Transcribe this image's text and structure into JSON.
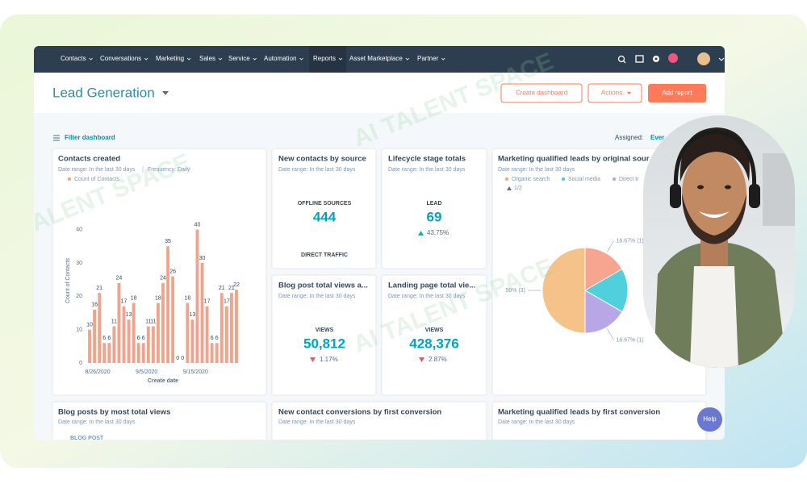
{
  "watermark": "AI TALENT SPACE",
  "nav": {
    "items": [
      "Contacts",
      "Conversations",
      "Marketing",
      "Sales",
      "Service",
      "Automation",
      "Reports",
      "Asset Marketplace",
      "Partner"
    ]
  },
  "header": {
    "title": "Lead Generation",
    "buttons": [
      "Create dashboard",
      "Actions",
      "Add report"
    ]
  },
  "toolbar": {
    "filter": "Filter dashboard",
    "assigned": "Assigned:",
    "assigned_value": "Ever"
  },
  "cards": [
    {
      "title": "New contacts by source",
      "subtitle": "Date range: In the last 30 days",
      "metric_label": "OFFLINE SOURCES",
      "value": "444",
      "second_label": "DIRECT TRAFFIC"
    },
    {
      "title": "Lifecycle stage totals",
      "subtitle": "Date range: In the last 30 days",
      "metric_label": "LEAD",
      "value": "69",
      "change": "43.75%"
    },
    {
      "title": "Blog post total views a...",
      "subtitle": "Date range: In the last 30 days",
      "metric_label": "VIEWS",
      "value": "50,812",
      "change": "1.17%"
    },
    {
      "title": "Landing page total vie...",
      "subtitle": "Date range: In the last 30 days",
      "metric_label": "VIEWS",
      "value": "428,376",
      "change": "2.87%"
    },
    {
      "title": "Blog posts by most total views",
      "subtitle": "Date range: In the last 30 days",
      "column": "BLOG POST"
    },
    {
      "title": "New contact conversions by first conversion",
      "subtitle": "Date range: In the last 30 days"
    },
    {
      "title": "Marketing qualified leads by first conversion",
      "subtitle": "Date range: In the last 30 days"
    }
  ],
  "help": "Help",
  "chart_data": [
    {
      "type": "bar",
      "title": "Contacts created",
      "subtitle": "Date range: In the last 30 days",
      "frequency": "Frequency: Daily",
      "legend": "Count of Contacts",
      "y_label": "Count of Contacts",
      "x_label": "Create date",
      "categories": [
        "8/26/2020",
        null,
        null,
        null,
        null,
        null,
        null,
        null,
        null,
        null,
        "9/5/2020",
        null,
        null,
        null,
        null,
        null,
        null,
        null,
        null,
        null,
        "9/15/2020",
        null,
        null,
        null,
        null,
        null,
        null,
        null,
        null,
        null,
        null
      ],
      "values": [
        10,
        16,
        21,
        6,
        6,
        11,
        24,
        17,
        13,
        18,
        6,
        6,
        11,
        11,
        18,
        24,
        35,
        26,
        0,
        0,
        18,
        13,
        40,
        30,
        17,
        6,
        6,
        21,
        17,
        21,
        22
      ],
      "color": "#f2a38c",
      "ylim": [
        0,
        45
      ],
      "yticks": [
        0,
        10,
        20,
        30,
        40
      ],
      "grid": false
    },
    {
      "type": "pie",
      "title": "Marketing qualified leads by original sour",
      "subtitle": "Date range: In the last 30 days",
      "categories": [
        "Organic search",
        "Social media",
        "Direct tr",
        null
      ],
      "values": [
        1,
        1,
        1,
        3
      ],
      "value_labels": [
        "16.67% (1)",
        null,
        "16.67% (1)",
        "50% (3)"
      ],
      "colors": [
        "#f8a58f",
        "#4fd0dc",
        "#b9a6e6",
        "#f5c38a"
      ],
      "legend_page": "1/2"
    }
  ]
}
